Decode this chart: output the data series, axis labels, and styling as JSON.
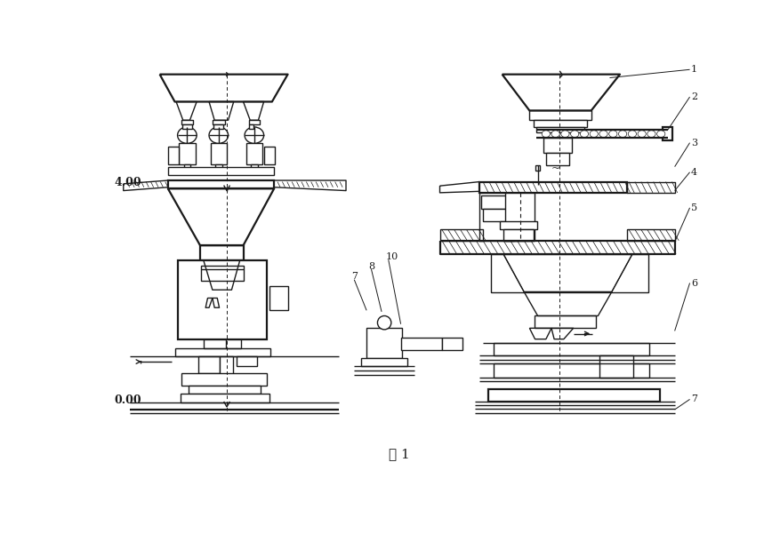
{
  "title": "图 1",
  "title_fontsize": 11,
  "bg_color": "#ffffff",
  "line_color": "#1a1a1a",
  "lw": 1.0,
  "lw2": 1.6,
  "fig_width": 8.77,
  "fig_height": 6.01,
  "label_400": "4.00",
  "label_000": "0.00",
  "labels_right": [
    "1",
    "2",
    "3",
    "4",
    "5",
    "6",
    "7"
  ],
  "labels_middle": [
    "7",
    "8",
    "10"
  ]
}
